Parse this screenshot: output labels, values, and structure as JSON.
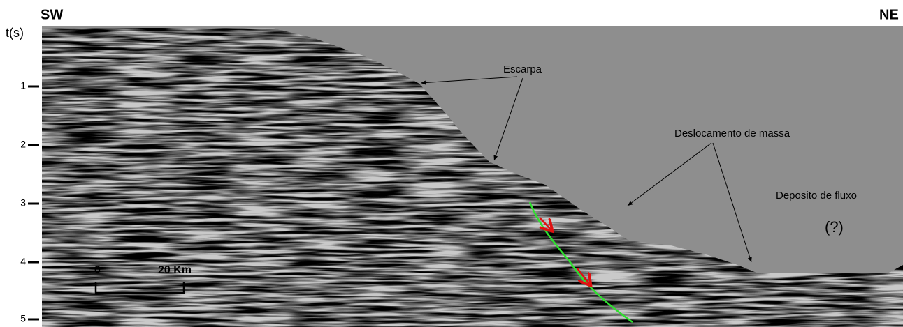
{
  "header": {
    "left": "SW",
    "right": "NE"
  },
  "axis": {
    "label": "t(s)",
    "ticks": [
      "1",
      "2",
      "3",
      "4",
      "5"
    ]
  },
  "annotations": {
    "escarpa": "Escarpa",
    "deslocamento": "Deslocamento de massa",
    "deposito": "Deposito de fluxo",
    "uncertain": "(?)"
  },
  "scale_bar": {
    "start": "0",
    "end": "20 Km"
  }
}
